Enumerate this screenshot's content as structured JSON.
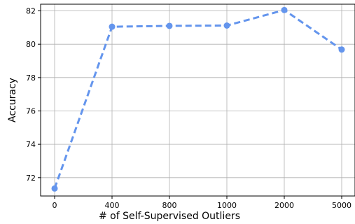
{
  "chart_data": {
    "type": "line",
    "xlabel": "# of Self-Supervised Outliers",
    "ylabel": "Accuracy",
    "categories": [
      "0",
      "400",
      "800",
      "1000",
      "2000",
      "5000"
    ],
    "series": [
      {
        "values": [
          71.35,
          81.05,
          81.1,
          81.12,
          82.05,
          79.68
        ]
      }
    ],
    "ylim": [
      70.9,
      82.4
    ],
    "yticks": [
      72,
      74,
      76,
      78,
      80,
      82
    ],
    "grid": true,
    "line_style": "dashed",
    "marker": "circle",
    "color": "#6495ed"
  }
}
